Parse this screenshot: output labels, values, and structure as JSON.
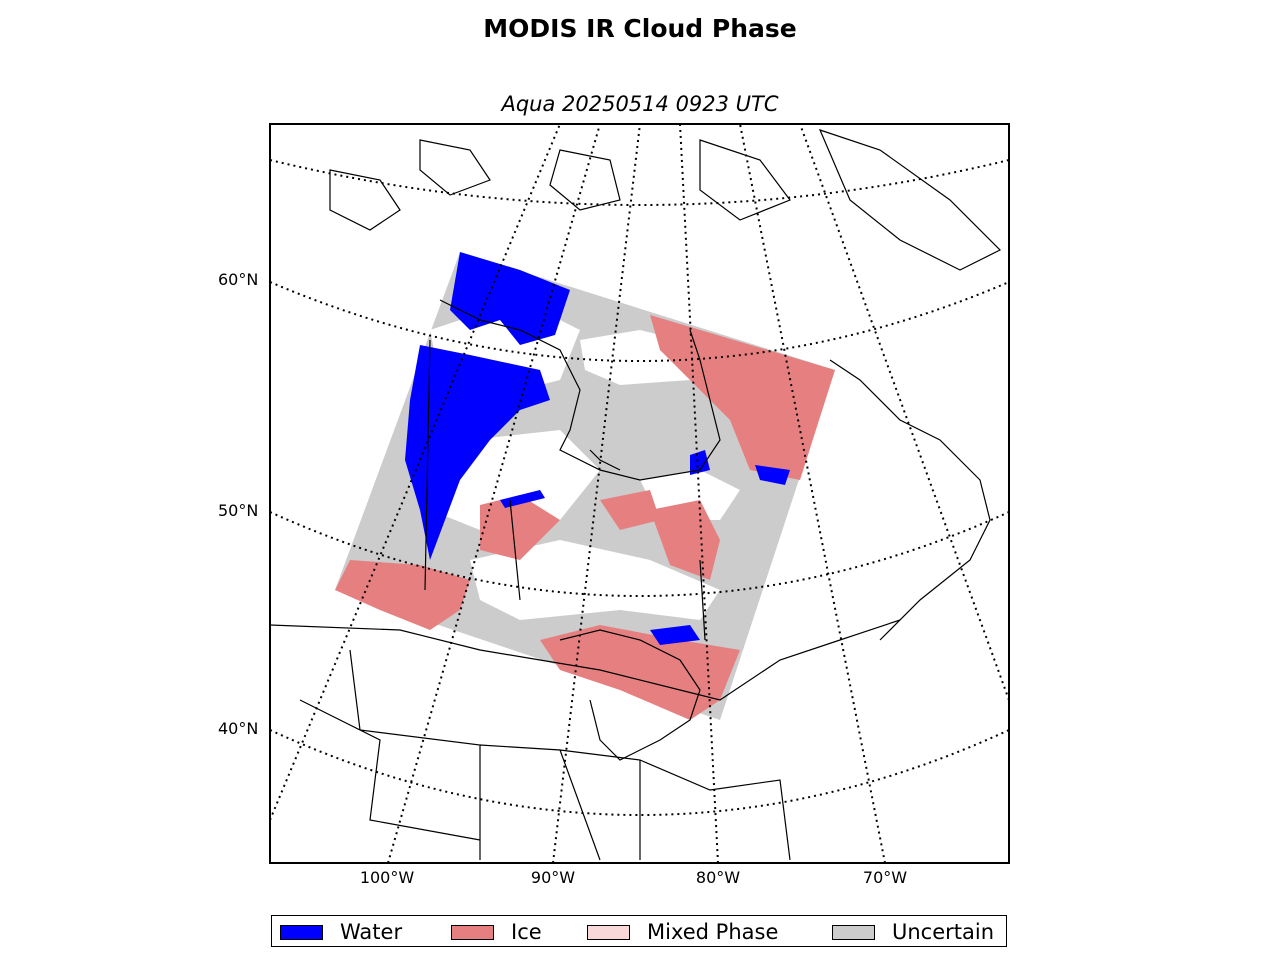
{
  "title": "MODIS IR Cloud Phase",
  "subtitle": "Aqua 20250514 0923 UTC",
  "lat_labels": [
    "60°N",
    "50°N",
    "40°N"
  ],
  "lon_labels": [
    "100°W",
    "90°W",
    "80°W",
    "70°W"
  ],
  "legend": [
    {
      "label": "Water",
      "color": "#0000ff"
    },
    {
      "label": "Ice",
      "color": "#e68080"
    },
    {
      "label": "Mixed Phase",
      "color": "#f8d8d8"
    },
    {
      "label": "Uncertain",
      "color": "#cccccc"
    }
  ],
  "colors": {
    "water": "#0000ff",
    "ice": "#e68080",
    "mixed": "#f8d8d8",
    "uncertain": "#cccccc",
    "clear": "#ffffff",
    "coastline": "#000000"
  }
}
